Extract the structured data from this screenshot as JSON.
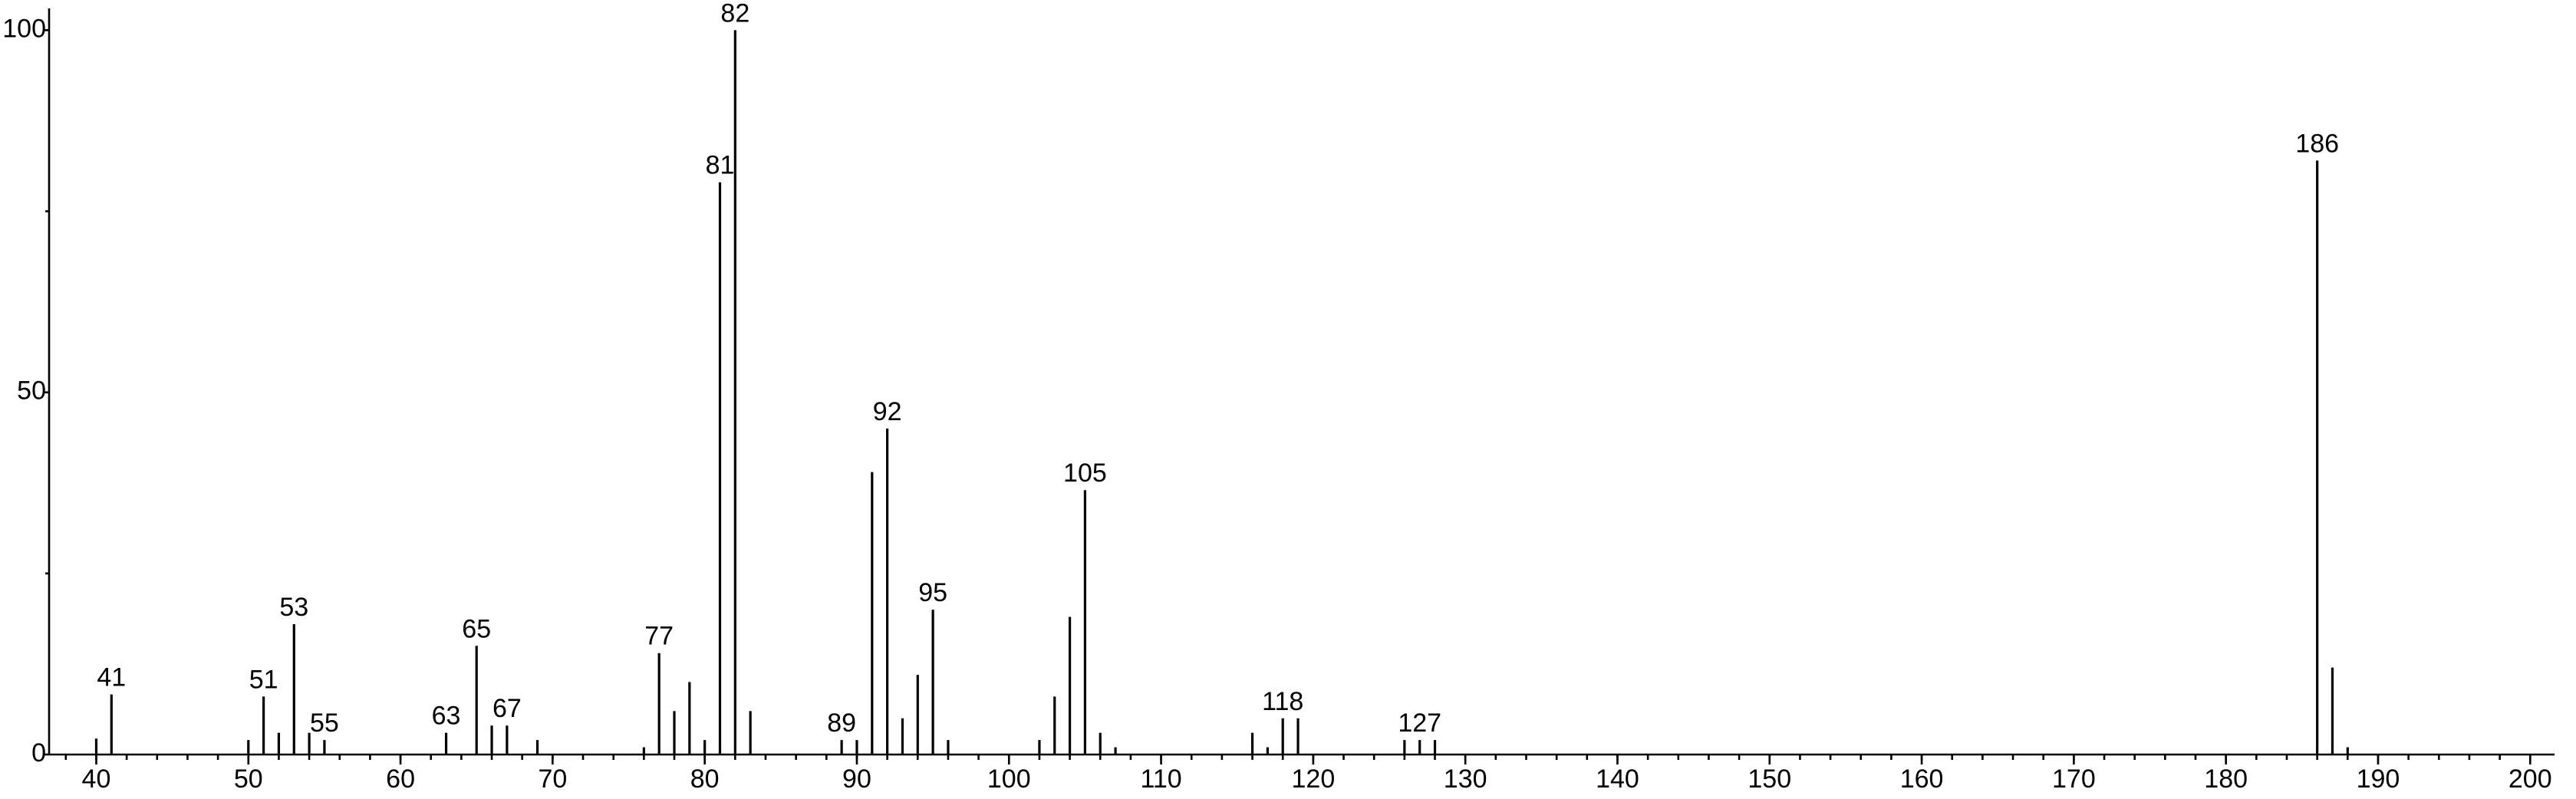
{
  "chart_data": {
    "type": "bar",
    "color": "#000000",
    "x": [
      40,
      41,
      50,
      51,
      52,
      53,
      54,
      55,
      63,
      65,
      66,
      67,
      69,
      76,
      77,
      78,
      79,
      80,
      81,
      82,
      83,
      89,
      90,
      91,
      92,
      93,
      94,
      95,
      96,
      102,
      103,
      104,
      105,
      106,
      107,
      116,
      117,
      118,
      119,
      126,
      127,
      128,
      186,
      187,
      188
    ],
    "values": [
      2.2,
      8.3,
      2,
      8,
      3,
      18,
      3,
      2,
      3,
      15,
      4,
      4,
      2,
      1,
      14,
      6,
      10,
      2,
      79,
      100,
      6,
      2,
      2,
      39,
      45,
      5,
      11,
      20,
      2,
      2,
      8,
      19,
      36.5,
      3,
      1,
      3,
      1,
      5,
      5,
      2,
      2,
      2,
      82,
      12,
      1
    ],
    "labeled_peaks": [
      41,
      51,
      53,
      55,
      63,
      65,
      67,
      77,
      81,
      82,
      89,
      92,
      95,
      105,
      118,
      127,
      186
    ],
    "xlim": [
      36.9,
      201.6
    ],
    "ylim": [
      0,
      103
    ],
    "xticks": [
      40,
      50,
      60,
      70,
      80,
      90,
      100,
      110,
      120,
      130,
      140,
      150,
      160,
      170,
      180,
      190,
      200
    ],
    "x_minor_tick_step": 2,
    "yticks": [
      0,
      50,
      100
    ],
    "yminorticks": [
      25,
      75
    ]
  }
}
